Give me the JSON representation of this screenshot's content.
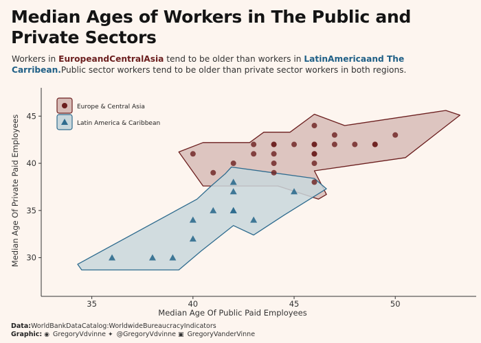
{
  "title": "Median Ages of Workers in The Public and Private Sectors",
  "subtitle": {
    "pre": "Workers in ",
    "group1": "EuropeandCentralAsia",
    "mid": "  tend to be older than workers in ",
    "group2": "LatinAmericaand The Carribean.",
    "post": "Public sector workers tend to be older than private sector workers in both regions."
  },
  "caption": {
    "data_label": "Data:",
    "data_text": "WorldBankDataCatalog:WorldwideBureaucracyIndicators",
    "graphic_label": "Graphic:",
    "github_icon": "github-icon",
    "github": " GregoryVdvinne",
    "twitter_icon": "twitter-icon",
    "twitter": " @GregoryVdvinne",
    "linkedin_icon": "linkedin-icon",
    "linkedin": " GregoryVanderVinne"
  },
  "colors": {
    "eca": "#6b1e1e",
    "eca_fill": "#d7bcb7",
    "lac": "#2e6b8e",
    "lac_fill": "#c9d7dc",
    "background": "#fdf5ef"
  },
  "chart_data": {
    "type": "scatter",
    "xlabel": "Median Age Of Public Paid Employees",
    "ylabel": "Median Age Of Private Paid Employees",
    "xlim": [
      32.5,
      54
    ],
    "ylim": [
      25.9,
      48
    ],
    "xticks": [
      35,
      40,
      45,
      50
    ],
    "yticks": [
      30,
      35,
      40,
      45
    ],
    "grid": false,
    "legend_position": "top-left",
    "series": [
      {
        "name": "Europe & Central Asia",
        "marker": "circle",
        "points": [
          [
            40,
            41
          ],
          [
            41,
            39
          ],
          [
            42,
            40
          ],
          [
            43,
            42
          ],
          [
            43,
            41
          ],
          [
            44,
            42
          ],
          [
            44,
            42
          ],
          [
            44,
            41
          ],
          [
            44,
            40
          ],
          [
            44,
            39
          ],
          [
            45,
            42
          ],
          [
            46,
            44
          ],
          [
            46,
            42
          ],
          [
            46,
            42
          ],
          [
            46,
            41
          ],
          [
            46,
            41
          ],
          [
            46,
            40
          ],
          [
            46,
            38
          ],
          [
            47,
            43
          ],
          [
            47,
            42
          ],
          [
            48,
            42
          ],
          [
            49,
            42
          ],
          [
            49,
            42
          ],
          [
            50,
            43
          ]
        ]
      },
      {
        "name": "Latin America & Caribbean",
        "marker": "triangle",
        "points": [
          [
            36,
            30
          ],
          [
            38,
            30
          ],
          [
            39,
            30
          ],
          [
            40,
            34
          ],
          [
            40,
            32
          ],
          [
            41,
            35
          ],
          [
            42,
            38
          ],
          [
            42,
            37
          ],
          [
            42,
            35
          ],
          [
            42,
            35
          ],
          [
            43,
            34
          ],
          [
            45,
            37
          ]
        ]
      }
    ]
  }
}
